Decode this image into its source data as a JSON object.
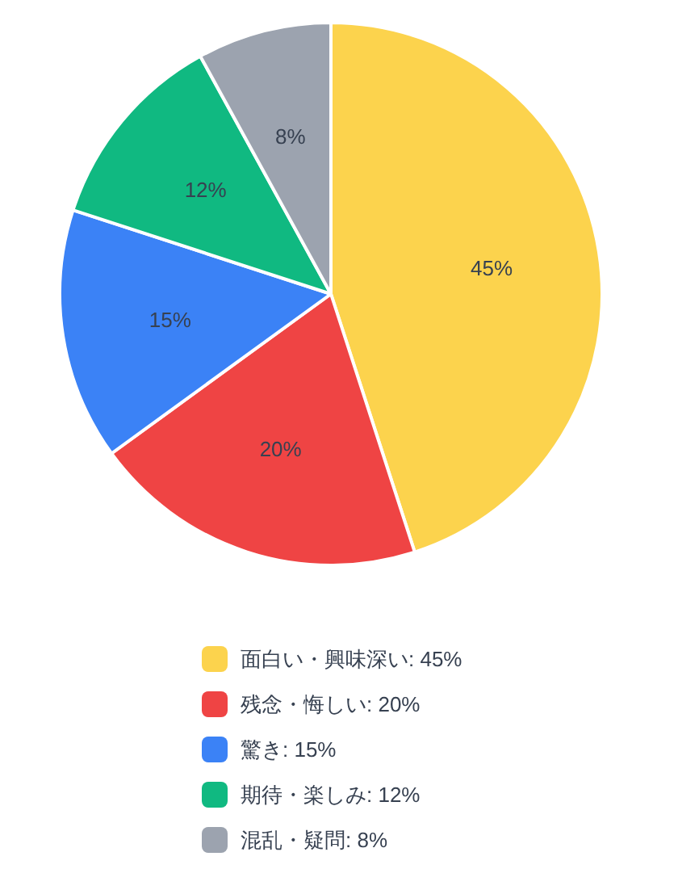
{
  "chart_data": {
    "type": "pie",
    "categories": [
      "面白い・興味深い: 45%",
      "残念・悔しい: 20%",
      "驚き: 15%",
      "期待・楽しみ: 12%",
      "混乱・疑問: 8%"
    ],
    "values": [
      45,
      20,
      15,
      12,
      8
    ],
    "colors": [
      "#fcd34d",
      "#ef4444",
      "#3b82f6",
      "#10b981",
      "#9ca3af"
    ],
    "value_labels": [
      "45%",
      "20%",
      "15%",
      "12%",
      "8%"
    ],
    "legend": "bottom"
  }
}
